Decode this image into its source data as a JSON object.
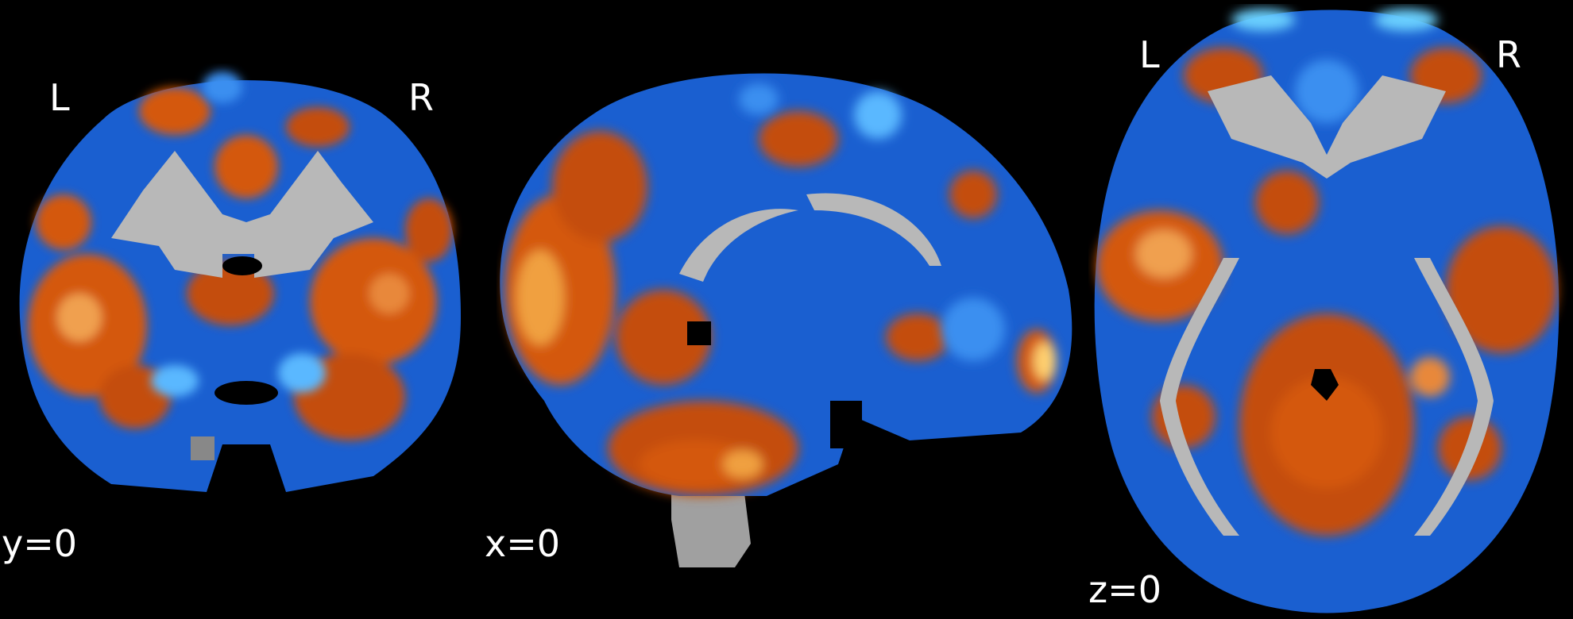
{
  "views": {
    "coronal": {
      "coordinate_label": "y=0",
      "left_label": "L",
      "right_label": "R"
    },
    "sagittal": {
      "coordinate_label": "x=0"
    },
    "axial": {
      "coordinate_label": "z=0",
      "left_label": "L",
      "right_label": "R"
    }
  },
  "colors": {
    "background": "#000000",
    "positive_map": "#d4580c",
    "positive_peak": "#ffd070",
    "negative_map": "#1a5fd0",
    "negative_peak": "#6ad0ff",
    "anatomy_gray": "#b8b8b8",
    "label_text": "#ffffff"
  }
}
